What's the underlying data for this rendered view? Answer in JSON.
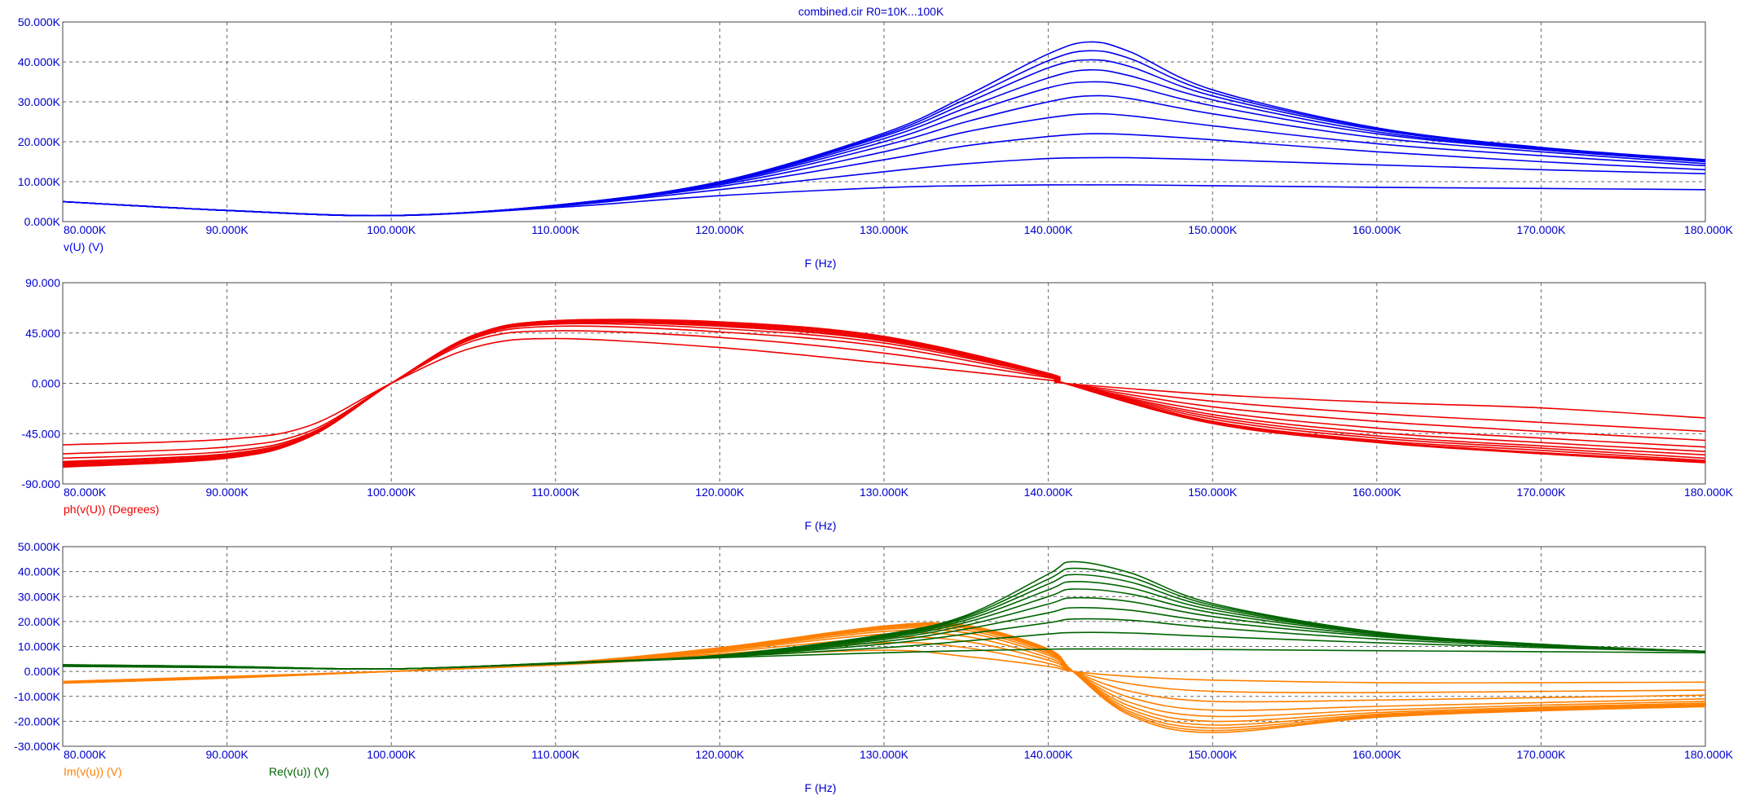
{
  "title": "combined.cir R0=10K...100K",
  "colors": {
    "title": "#0000CC",
    "axis_text": "#0000CC",
    "magnitude": "#0000EE",
    "phase": "#EE0000",
    "imag": "#FF8000",
    "real": "#006400",
    "grid": "#666666",
    "frame": "#444444"
  },
  "x_axis": {
    "label": "F (Hz)",
    "ticks": [
      "80.000K",
      "90.000K",
      "100.000K",
      "110.000K",
      "120.000K",
      "130.000K",
      "140.000K",
      "150.000K",
      "160.000K",
      "170.000K",
      "180.000K"
    ],
    "range": [
      80000,
      180000
    ]
  },
  "chart_data": [
    {
      "type": "line",
      "title": "",
      "xlabel": "F (Hz)",
      "ylabel": "v(U) (V)",
      "ylim": [
        0,
        50000
      ],
      "grid": true,
      "y_ticks": [
        "50.000K",
        "40.000K",
        "30.000K",
        "20.000K",
        "10.000K",
        "0.000K"
      ],
      "legend": [
        {
          "text": "v(U) (V)",
          "color": "#0000EE"
        }
      ],
      "param": "R0",
      "param_values": [
        10000,
        20000,
        30000,
        40000,
        50000,
        60000,
        70000,
        80000,
        90000,
        100000
      ],
      "x": [
        80000,
        90000,
        100000,
        110000,
        120000,
        130000,
        135000,
        140000,
        142500,
        145000,
        150000,
        160000,
        170000,
        180000
      ],
      "series": [
        {
          "values": [
            5000,
            2800,
            1500,
            3500,
            6500,
            8500,
            9000,
            9200,
            9200,
            9200,
            9000,
            8600,
            8300,
            8000
          ]
        },
        {
          "values": [
            5000,
            2800,
            1500,
            3800,
            8000,
            12500,
            14500,
            15800,
            16000,
            16000,
            15500,
            14200,
            13000,
            12000
          ]
        },
        {
          "values": [
            5000,
            2800,
            1500,
            3900,
            8800,
            15500,
            19000,
            21300,
            22000,
            21800,
            20500,
            17500,
            15000,
            13000
          ]
        },
        {
          "values": [
            5000,
            2800,
            1500,
            4000,
            9200,
            17500,
            22500,
            26000,
            27000,
            26500,
            24000,
            19500,
            16500,
            14000
          ]
        },
        {
          "values": [
            5000,
            2800,
            1500,
            4000,
            9500,
            19000,
            25000,
            30000,
            31500,
            30800,
            27000,
            21000,
            17500,
            14500
          ]
        },
        {
          "values": [
            5000,
            2800,
            1500,
            4050,
            9700,
            20000,
            27000,
            33500,
            35000,
            34000,
            29000,
            22000,
            18000,
            15000
          ]
        },
        {
          "values": [
            5000,
            2800,
            1500,
            4050,
            9800,
            20800,
            28500,
            36000,
            38000,
            36500,
            30500,
            22500,
            18200,
            15200
          ]
        },
        {
          "values": [
            5000,
            2800,
            1500,
            4100,
            9900,
            21400,
            29700,
            38500,
            40500,
            38800,
            31500,
            23000,
            18400,
            15300
          ]
        },
        {
          "values": [
            5000,
            2800,
            1500,
            4100,
            10000,
            21800,
            30700,
            40300,
            42800,
            40800,
            32300,
            23300,
            18500,
            15400
          ]
        },
        {
          "values": [
            5000,
            2800,
            1500,
            4100,
            10000,
            22200,
            31500,
            42000,
            45000,
            42500,
            33000,
            23500,
            18600,
            15500
          ]
        }
      ]
    },
    {
      "type": "line",
      "title": "",
      "xlabel": "F (Hz)",
      "ylabel": "ph(v(U)) (Degrees)",
      "ylim": [
        -90,
        90
      ],
      "grid": true,
      "y_ticks": [
        "90.000",
        "45.000",
        "0.000",
        "-45.000",
        "-90.000"
      ],
      "legend": [
        {
          "text": "ph(v(U)) (Degrees)",
          "color": "#EE0000"
        }
      ],
      "param": "R0",
      "param_values": [
        10000,
        20000,
        30000,
        40000,
        50000,
        60000,
        70000,
        80000,
        90000,
        100000
      ],
      "x": [
        80000,
        90000,
        95000,
        100000,
        105000,
        110000,
        120000,
        130000,
        140000,
        141000,
        150000,
        160000,
        170000,
        180000
      ],
      "series": [
        {
          "values": [
            -55,
            -50,
            -38,
            0,
            32,
            40,
            32,
            18,
            3,
            0,
            -10,
            -17,
            -22,
            -31
          ]
        },
        {
          "values": [
            -63,
            -57,
            -43,
            0,
            38,
            47,
            41,
            27,
            5,
            0,
            -16,
            -27,
            -35,
            -43
          ]
        },
        {
          "values": [
            -67,
            -61,
            -45,
            0,
            40,
            51,
            46,
            33,
            6,
            0,
            -21,
            -34,
            -43,
            -51
          ]
        },
        {
          "values": [
            -70,
            -63,
            -46,
            0,
            41,
            53,
            49,
            36,
            7,
            0,
            -25,
            -40,
            -49,
            -57
          ]
        },
        {
          "values": [
            -71,
            -64,
            -47,
            0,
            42,
            54,
            51,
            38,
            7,
            0,
            -28,
            -44,
            -53,
            -61
          ]
        },
        {
          "values": [
            -72,
            -65,
            -47,
            0,
            42,
            55,
            52,
            39,
            8,
            0,
            -30,
            -47,
            -56,
            -64
          ]
        },
        {
          "values": [
            -73,
            -66,
            -48,
            0,
            43,
            55,
            53,
            40,
            8,
            0,
            -32,
            -49,
            -58,
            -67
          ]
        },
        {
          "values": [
            -74,
            -66,
            -48,
            0,
            43,
            56,
            54,
            41,
            8,
            0,
            -34,
            -51,
            -60,
            -69
          ]
        },
        {
          "values": [
            -74,
            -67,
            -48,
            0,
            43,
            56,
            54,
            41,
            8,
            0,
            -35,
            -52,
            -62,
            -70
          ]
        },
        {
          "values": [
            -75,
            -67,
            -48,
            0,
            43,
            56,
            55,
            42,
            9,
            0,
            -36,
            -53,
            -63,
            -71
          ]
        }
      ]
    },
    {
      "type": "line",
      "title": "",
      "xlabel": "F (Hz)",
      "ylabel": "",
      "ylim": [
        -30000,
        50000
      ],
      "grid": true,
      "y_ticks": [
        "50.000K",
        "40.000K",
        "30.000K",
        "20.000K",
        "10.000K",
        "0.000K",
        "-10.000K",
        "-20.000K",
        "-30.000K"
      ],
      "legend": [
        {
          "text": "Im(v(u)) (V)",
          "color": "#FF8000"
        },
        {
          "text": "Re(v(u)) (V)",
          "color": "#006400"
        }
      ],
      "param": "R0",
      "param_values": [
        10000,
        20000,
        30000,
        40000,
        50000,
        60000,
        70000,
        80000,
        90000,
        100000
      ],
      "x": [
        80000,
        90000,
        100000,
        110000,
        120000,
        130000,
        135000,
        140000,
        141500,
        145000,
        150000,
        160000,
        170000,
        180000
      ],
      "series": [
        {
          "name": "Im(v(u)) (V)",
          "values": [
            -4000,
            -2000,
            0,
            2500,
            6000,
            8500,
            6000,
            2000,
            0,
            -2000,
            -3500,
            -4500,
            -4500,
            -4300
          ]
        },
        {
          "name": "Im(v(u)) (V)",
          "values": [
            -4200,
            -2200,
            0,
            2700,
            7000,
            11500,
            9500,
            3200,
            0,
            -5000,
            -8000,
            -8500,
            -8000,
            -7500
          ]
        },
        {
          "name": "Im(v(u)) (V)",
          "values": [
            -4300,
            -2300,
            0,
            2800,
            7700,
            13500,
            12000,
            4500,
            0,
            -8000,
            -12000,
            -11500,
            -10500,
            -9500
          ]
        },
        {
          "name": "Im(v(u)) (V)",
          "values": [
            -4400,
            -2400,
            0,
            2900,
            8200,
            15000,
            14000,
            5500,
            0,
            -10500,
            -15500,
            -14000,
            -12500,
            -11000
          ]
        },
        {
          "name": "Im(v(u)) (V)",
          "values": [
            -4500,
            -2450,
            0,
            3000,
            8600,
            16000,
            15500,
            6500,
            0,
            -12500,
            -18000,
            -15500,
            -13500,
            -12000
          ]
        },
        {
          "name": "Im(v(u)) (V)",
          "values": [
            -4550,
            -2500,
            0,
            3050,
            8900,
            16800,
            16500,
            7200,
            0,
            -14000,
            -20000,
            -16500,
            -14300,
            -12700
          ]
        },
        {
          "name": "Im(v(u)) (V)",
          "values": [
            -4600,
            -2550,
            0,
            3100,
            9100,
            17300,
            17300,
            7800,
            0,
            -15200,
            -21500,
            -17200,
            -14800,
            -13200
          ]
        },
        {
          "name": "Im(v(u)) (V)",
          "values": [
            -4650,
            -2600,
            0,
            3100,
            9300,
            17700,
            17800,
            8300,
            0,
            -16200,
            -22700,
            -17700,
            -15200,
            -13600
          ]
        },
        {
          "name": "Im(v(u)) (V)",
          "values": [
            -4700,
            -2650,
            0,
            3150,
            9400,
            18000,
            18200,
            8700,
            0,
            -17000,
            -23700,
            -18100,
            -15500,
            -13900
          ]
        },
        {
          "name": "Im(v(u)) (V)",
          "values": [
            -4700,
            -2700,
            0,
            3200,
            9500,
            18200,
            18500,
            9000,
            0,
            -17700,
            -24500,
            -18400,
            -15800,
            -14100
          ]
        },
        {
          "name": "Re(v(u)) (V)",
          "values": [
            2000,
            1500,
            1000,
            3000,
            5500,
            7500,
            8300,
            8900,
            9000,
            9000,
            8800,
            8300,
            7900,
            7500
          ]
        },
        {
          "name": "Re(v(u)) (V)",
          "values": [
            2200,
            1600,
            1000,
            3100,
            5800,
            9500,
            12200,
            15000,
            15600,
            15400,
            14000,
            11500,
            9500,
            8000
          ]
        },
        {
          "name": "Re(v(u)) (V)",
          "values": [
            2300,
            1700,
            1000,
            3200,
            6000,
            11000,
            15000,
            19500,
            21000,
            20500,
            17500,
            13000,
            10000,
            8000
          ]
        },
        {
          "name": "Re(v(u)) (V)",
          "values": [
            2400,
            1750,
            1000,
            3200,
            6100,
            12000,
            17000,
            23500,
            25500,
            24500,
            20000,
            14000,
            10300,
            8000
          ]
        },
        {
          "name": "Re(v(u)) (V)",
          "values": [
            2450,
            1800,
            1000,
            3250,
            6200,
            12800,
            18500,
            27000,
            29500,
            28000,
            22000,
            14500,
            10500,
            8000
          ]
        },
        {
          "name": "Re(v(u)) (V)",
          "values": [
            2500,
            1850,
            1000,
            3300,
            6300,
            13400,
            19700,
            30000,
            33000,
            31000,
            23500,
            15000,
            10600,
            8000
          ]
        },
        {
          "name": "Re(v(u)) (V)",
          "values": [
            2550,
            1900,
            1000,
            3300,
            6350,
            13900,
            20600,
            32700,
            36000,
            33500,
            24700,
            15300,
            10700,
            8000
          ]
        },
        {
          "name": "Re(v(u)) (V)",
          "values": [
            2600,
            1950,
            1000,
            3350,
            6400,
            14300,
            21400,
            35000,
            38800,
            35800,
            25700,
            15500,
            10800,
            8000
          ]
        },
        {
          "name": "Re(v(u)) (V)",
          "values": [
            2650,
            2000,
            1000,
            3350,
            6450,
            14600,
            22000,
            37000,
            41300,
            37800,
            26500,
            15700,
            10800,
            8000
          ]
        },
        {
          "name": "Re(v(u)) (V)",
          "values": [
            2700,
            2000,
            1000,
            3400,
            6500,
            14800,
            22500,
            39000,
            44000,
            39500,
            27200,
            15800,
            10900,
            8000
          ]
        }
      ]
    }
  ]
}
